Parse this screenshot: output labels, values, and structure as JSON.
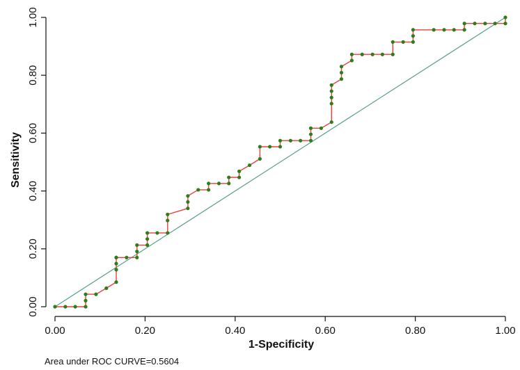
{
  "chart_data": {
    "type": "line",
    "xlabel": "1-Specificity",
    "ylabel": "Sensitivity",
    "xlim": [
      0,
      1
    ],
    "ylim": [
      0,
      1
    ],
    "xticks": [
      "0.00",
      "0.20",
      "0.40",
      "0.60",
      "0.80",
      "1.00"
    ],
    "yticks": [
      "0.00",
      "0.20",
      "0.40",
      "0.60",
      "0.80",
      "1.00"
    ],
    "xtick_values": [
      0,
      0.2,
      0.4,
      0.6,
      0.8,
      1.0
    ],
    "ytick_values": [
      0,
      0.2,
      0.4,
      0.6,
      0.8,
      1.0
    ],
    "grid": false,
    "annotation": "Area under ROC CURVE=0.5604",
    "colors": {
      "curve": "#e8413c",
      "points": "#2e7d1a",
      "reference": "#5a9e8f",
      "axis": "#111111"
    },
    "series": [
      {
        "x": [
          0.0,
          0.023,
          0.045,
          0.068,
          0.068,
          0.068,
          0.091,
          0.114,
          0.136,
          0.136,
          0.136,
          0.136,
          0.136,
          0.159,
          0.182,
          0.182,
          0.182,
          0.205,
          0.205,
          0.205,
          0.227,
          0.25,
          0.25,
          0.25,
          0.295,
          0.295,
          0.295,
          0.318,
          0.341,
          0.341,
          0.364,
          0.386,
          0.386,
          0.409,
          0.409,
          0.432,
          0.455,
          0.455,
          0.477,
          0.5,
          0.5,
          0.523,
          0.545,
          0.568,
          0.568,
          0.568,
          0.591,
          0.614,
          0.614,
          0.614,
          0.614,
          0.614,
          0.636,
          0.636,
          0.636,
          0.659,
          0.659,
          0.682,
          0.705,
          0.727,
          0.75,
          0.75,
          0.773,
          0.795,
          0.795,
          0.795,
          0.841,
          0.864,
          0.886,
          0.909,
          0.909,
          0.932,
          0.955,
          0.977,
          1.0,
          1.0
        ],
        "y": [
          0.0,
          0.0,
          0.0,
          0.0,
          0.021,
          0.043,
          0.043,
          0.064,
          0.085,
          0.128,
          0.149,
          0.17,
          0.17,
          0.17,
          0.17,
          0.191,
          0.213,
          0.213,
          0.234,
          0.255,
          0.255,
          0.255,
          0.298,
          0.319,
          0.34,
          0.362,
          0.383,
          0.404,
          0.404,
          0.426,
          0.426,
          0.426,
          0.447,
          0.447,
          0.468,
          0.489,
          0.511,
          0.553,
          0.553,
          0.553,
          0.574,
          0.574,
          0.574,
          0.574,
          0.596,
          0.617,
          0.617,
          0.638,
          0.702,
          0.723,
          0.745,
          0.766,
          0.787,
          0.809,
          0.83,
          0.851,
          0.872,
          0.872,
          0.872,
          0.872,
          0.872,
          0.915,
          0.915,
          0.915,
          0.936,
          0.957,
          0.957,
          0.957,
          0.957,
          0.957,
          0.979,
          0.979,
          0.979,
          0.979,
          0.979,
          1.0
        ]
      }
    ]
  }
}
